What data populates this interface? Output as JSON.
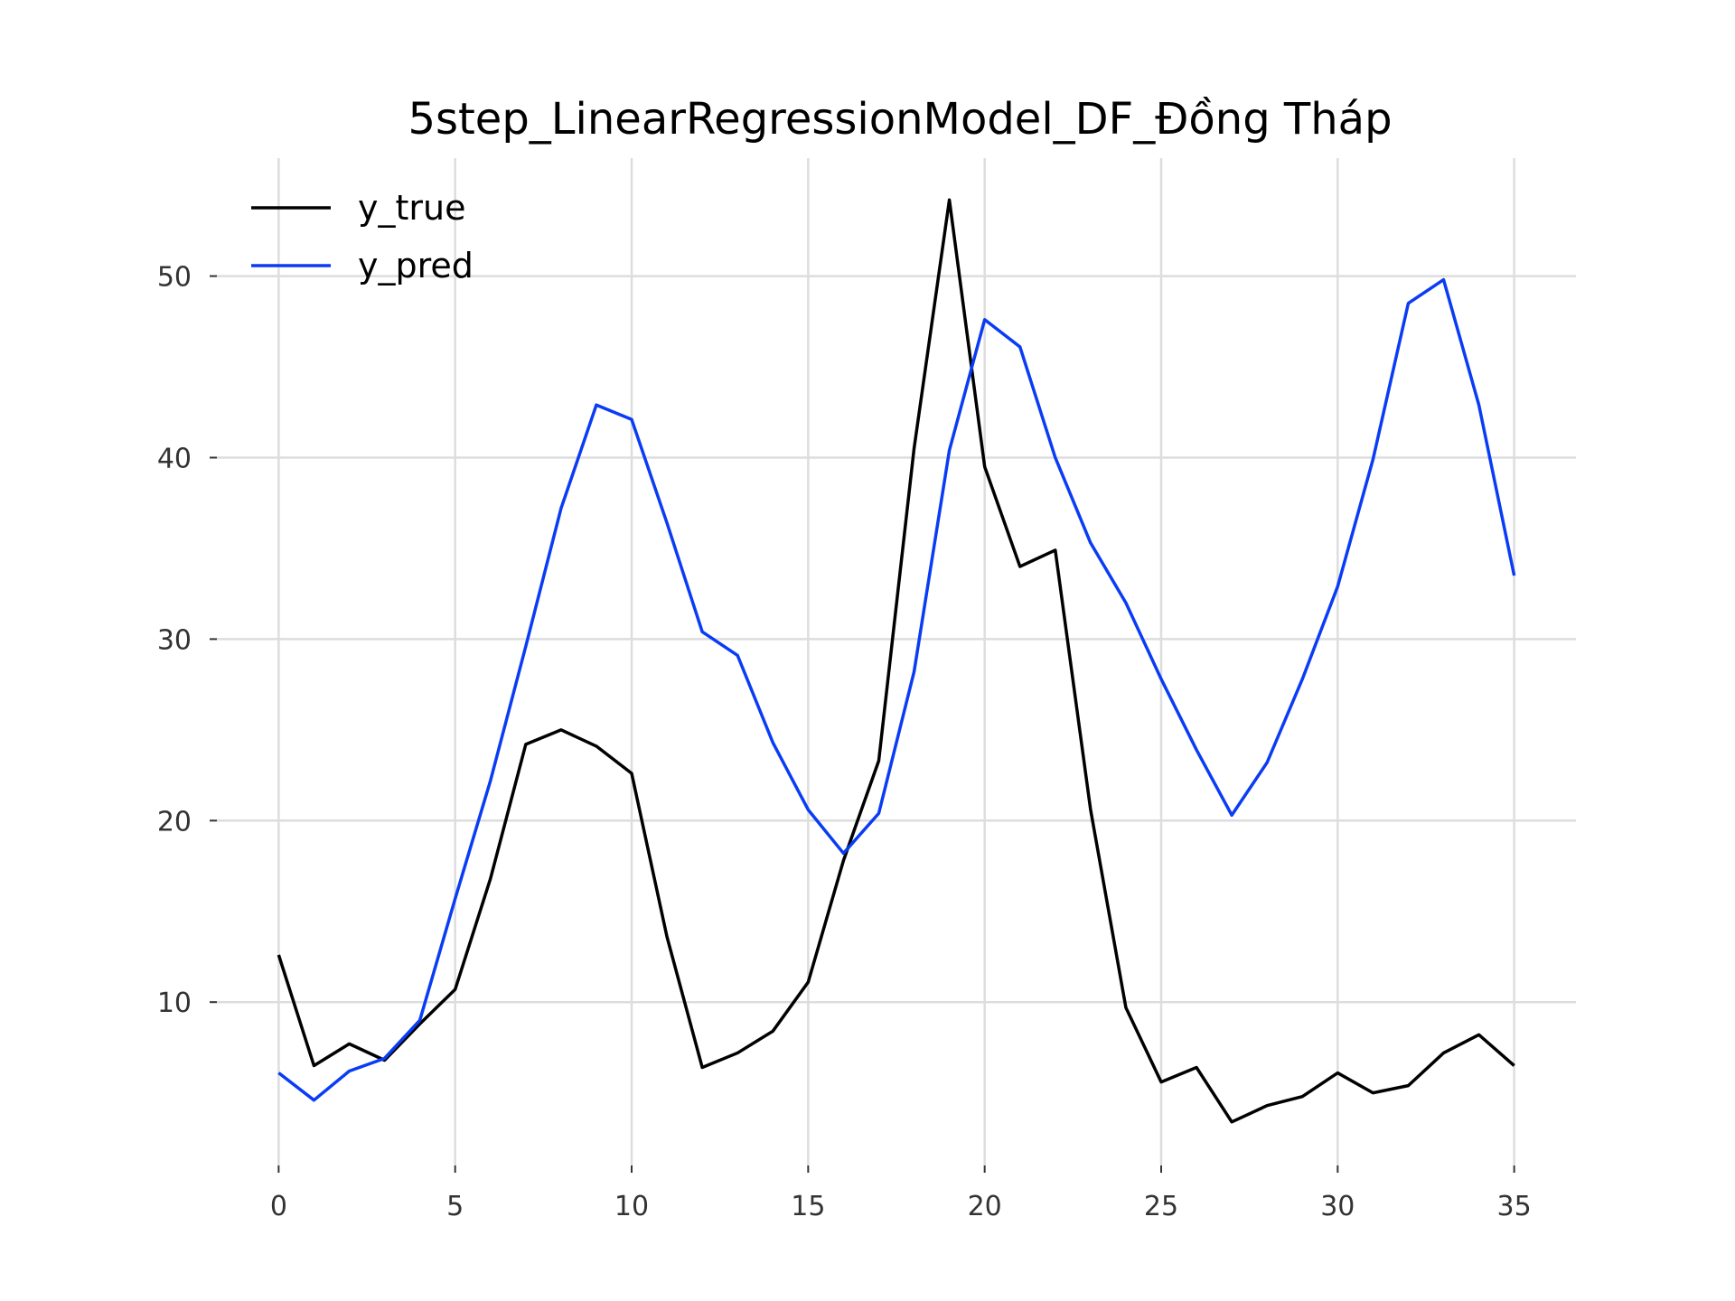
{
  "chart_data": {
    "type": "line",
    "title": "5step_LinearRegressionModel_DF_Đồng Tháp",
    "xlabel": "",
    "ylabel": "",
    "xlim": [
      -1.75,
      36.75
    ],
    "ylim": [
      1.0,
      56.5
    ],
    "x_ticks": [
      0,
      5,
      10,
      15,
      20,
      25,
      30,
      35
    ],
    "y_ticks": [
      10,
      20,
      30,
      40,
      50
    ],
    "grid": true,
    "legend_position": "top-left",
    "x": [
      0,
      1,
      2,
      3,
      4,
      5,
      6,
      7,
      8,
      9,
      10,
      11,
      12,
      13,
      14,
      15,
      16,
      17,
      18,
      19,
      20,
      21,
      22,
      23,
      24,
      25,
      26,
      27,
      28,
      29,
      30,
      31,
      32,
      33,
      34,
      35
    ],
    "series": [
      {
        "name": "y_true",
        "color": "#000000",
        "values": [
          12.6,
          6.5,
          7.7,
          6.8,
          8.8,
          10.7,
          16.8,
          24.2,
          25.0,
          24.1,
          22.6,
          13.6,
          6.4,
          7.2,
          8.4,
          11.1,
          17.8,
          23.3,
          40.5,
          54.2,
          39.5,
          34.0,
          34.9,
          20.6,
          9.7,
          5.6,
          6.4,
          3.4,
          4.3,
          4.8,
          6.1,
          5.0,
          5.4,
          7.2,
          8.2,
          6.5
        ]
      },
      {
        "name": "y_pred",
        "color": "#0a3cf5",
        "values": [
          6.1,
          4.6,
          6.2,
          6.9,
          9.0,
          15.7,
          22.2,
          29.6,
          37.2,
          42.9,
          42.1,
          36.4,
          30.4,
          29.1,
          24.3,
          20.6,
          18.2,
          20.4,
          28.2,
          40.4,
          47.6,
          46.1,
          40.0,
          35.3,
          32.0,
          27.8,
          23.9,
          20.3,
          23.2,
          27.8,
          32.9,
          39.9,
          48.5,
          49.8,
          42.9,
          33.5
        ]
      }
    ]
  }
}
